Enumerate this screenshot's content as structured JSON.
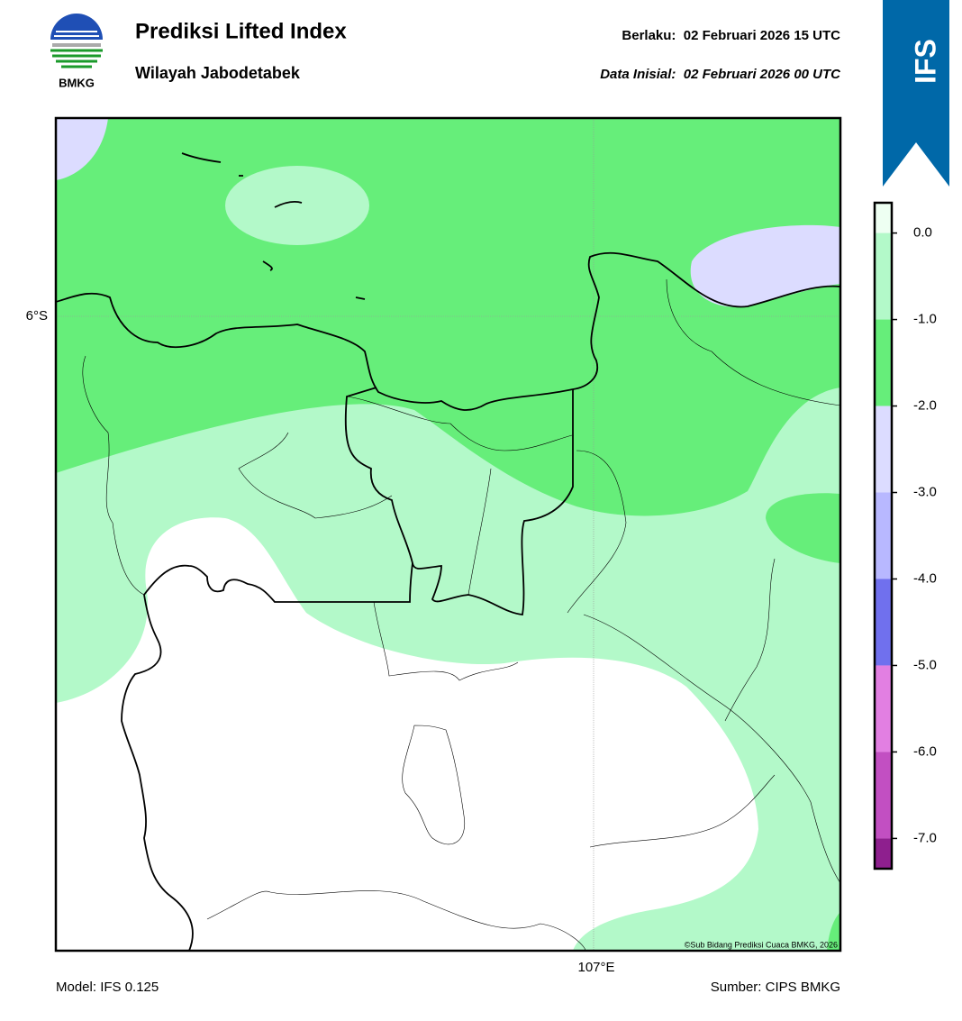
{
  "header": {
    "logo_text": "BMKG",
    "title": "Prediksi Lifted Index",
    "subtitle": "Wilayah Jabodetabek",
    "valid": "Berlaku:  02 Februari 2026 15 UTC",
    "init": "Data Inisial:  02 Februari 2026 00 UTC",
    "badge": "IFS"
  },
  "map": {
    "lat_label": "6°S",
    "lon_label": "107°E",
    "credit": "©Sub Bidang Prediksi Cuaca BMKG, 2026"
  },
  "colorbar": {
    "lim": [
      0.35,
      -7.35
    ],
    "ticks": [
      {
        "value": 0,
        "label": "0.0"
      },
      {
        "value": -1,
        "label": "-1.0"
      },
      {
        "value": -2,
        "label": "-2.0"
      },
      {
        "value": -3,
        "label": "-3.0"
      },
      {
        "value": -4,
        "label": "-4.0"
      },
      {
        "value": -5,
        "label": "-5.0"
      },
      {
        "value": -6,
        "label": "-6.0"
      },
      {
        "value": -7,
        "label": "-7.0"
      }
    ],
    "colors": [
      "#eefff2",
      "#b3f9c9",
      "#66ee7a",
      "#dcdcff",
      "#b8b8ff",
      "#7070ee",
      "#e27fe2",
      "#c24fc2",
      "#8e1f8e"
    ]
  },
  "footer": {
    "model": "Model: IFS 0.125",
    "source": "Sumber: CIPS BMKG"
  }
}
